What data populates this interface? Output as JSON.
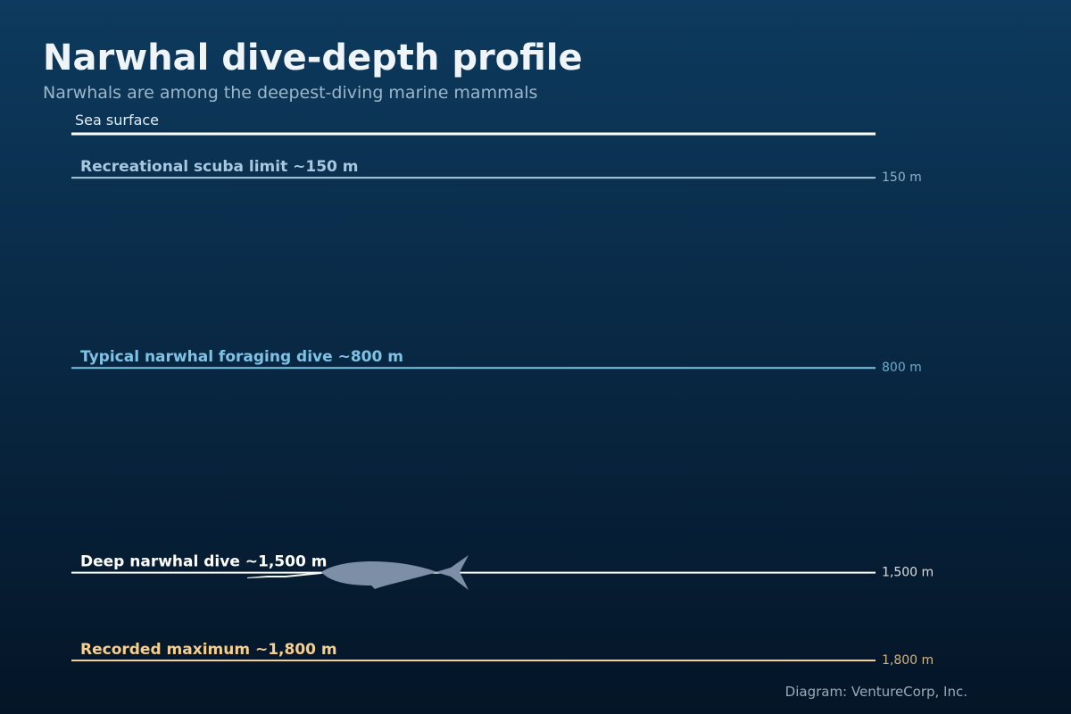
{
  "title": "Narwhal dive-depth profile",
  "subtitle": "Narwhals are among the deepest-diving marine mammals",
  "surface_label": "Sea surface",
  "depth_range": [
    0,
    1800
  ],
  "levels": [
    {
      "label": "Recreational scuba limit ~150 m",
      "depth": 150,
      "depth_label": "150 m",
      "color": "#a9c8e0"
    },
    {
      "label": "Typical narwhal foraging dive ~800 m",
      "depth": 800,
      "depth_label": "800 m",
      "color": "#7ec3e6"
    },
    {
      "label": "Deep narwhal dive ~1,500 m",
      "depth": 1500,
      "depth_label": "1,500 m",
      "color": "#ffffff"
    },
    {
      "label": "Recorded maximum ~1,800 m",
      "depth": 1800,
      "depth_label": "1,800 m",
      "color": "#f5cf8f"
    }
  ],
  "credit": "Diagram: VentureCorp, Inc."
}
